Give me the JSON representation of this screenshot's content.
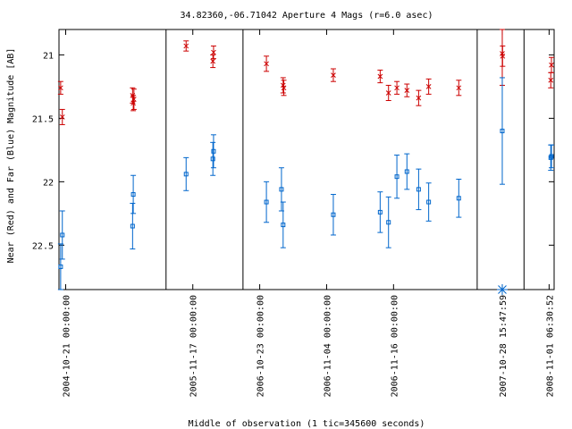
{
  "chart_data": {
    "type": "scatter",
    "title": "34.82360,-06.71042   Aperture 4 Mags (r=6.0 asec)",
    "xlabel": "Middle of observation (1 tic=345600 seconds)",
    "ylabel": "Near (Red) and Far (Blue) Magnitude [AB]",
    "y_axis": {
      "inverted": true,
      "ylim": [
        20.8,
        22.85
      ],
      "ticks": [
        "21",
        "21.5",
        "22",
        "22.5"
      ],
      "tick_values": [
        21,
        21.5,
        22,
        22.5
      ]
    },
    "x_axis": {
      "ticks": [
        "2004-10-21 00:00:00",
        "2005-11-17 00:00:00",
        "2006-10-23 00:00:00",
        "2006-11-04 00:00:00",
        "2006-11-16 00:00:00",
        "2007-10-28 15:47:59",
        "2008-11-01 06:30:52"
      ]
    },
    "grid": false,
    "legend": "none",
    "segments": [
      {
        "start": 0.0,
        "end": 3.2,
        "tick_at": 0.2,
        "tick_label": 0
      },
      {
        "start": 3.2,
        "end": 5.5,
        "tick_at": 0.8,
        "tick_label": 1
      },
      {
        "start": 5.5,
        "end": 12.5,
        "tick_at": 0.5,
        "tick_label": 2
      },
      {
        "start": 5.5,
        "end": 12.5,
        "tick_at": 2.5,
        "tick_label": 3
      },
      {
        "start": 5.5,
        "end": 12.5,
        "tick_at": 4.5,
        "tick_label": 4
      },
      {
        "start": 12.5,
        "end": 13.9,
        "tick_at": 0.75,
        "tick_label": 5
      },
      {
        "start": 13.9,
        "end": 14.8,
        "tick_at": 0.75,
        "tick_label": 6
      }
    ],
    "separators": [
      3.2,
      5.5,
      12.5,
      13.9
    ],
    "series": [
      {
        "name": "Near (Red)",
        "color": "#cc0000",
        "marker": "x",
        "points": [
          {
            "x": 0.05,
            "y": 21.26,
            "err": 0.05
          },
          {
            "x": 0.1,
            "y": 21.49,
            "err": 0.06
          },
          {
            "x": 2.2,
            "y": 21.32,
            "err": 0.06
          },
          {
            "x": 2.22,
            "y": 21.38,
            "err": 0.06
          },
          {
            "x": 2.24,
            "y": 21.35,
            "err": 0.08
          },
          {
            "x": 3.8,
            "y": 20.93,
            "err": 0.04
          },
          {
            "x": 4.6,
            "y": 21.05,
            "err": 0.05
          },
          {
            "x": 4.62,
            "y": 20.98,
            "err": 0.05
          },
          {
            "x": 6.2,
            "y": 21.07,
            "err": 0.06
          },
          {
            "x": 6.7,
            "y": 21.24,
            "err": 0.06
          },
          {
            "x": 6.72,
            "y": 21.26,
            "err": 0.06
          },
          {
            "x": 8.2,
            "y": 21.16,
            "err": 0.05
          },
          {
            "x": 9.6,
            "y": 21.17,
            "err": 0.05
          },
          {
            "x": 9.85,
            "y": 21.3,
            "err": 0.06
          },
          {
            "x": 10.1,
            "y": 21.26,
            "err": 0.05
          },
          {
            "x": 10.4,
            "y": 21.28,
            "err": 0.05
          },
          {
            "x": 10.75,
            "y": 21.34,
            "err": 0.06
          },
          {
            "x": 11.05,
            "y": 21.25,
            "err": 0.06
          },
          {
            "x": 11.95,
            "y": 21.26,
            "err": 0.06
          },
          {
            "x": 13.25,
            "y": 20.99,
            "err": 0.25
          },
          {
            "x": 13.26,
            "y": 21.01,
            "err": 0.08
          },
          {
            "x": 14.7,
            "y": 21.2,
            "err": 0.06
          },
          {
            "x": 14.72,
            "y": 21.08,
            "err": 0.06
          }
        ]
      },
      {
        "name": "Far (Blue)",
        "color": "#0066cc",
        "marker": "square",
        "points": [
          {
            "x": 0.05,
            "y": 22.67,
            "err": 0.18
          },
          {
            "x": 0.1,
            "y": 22.42,
            "err": 0.19
          },
          {
            "x": 2.2,
            "y": 22.35,
            "err": 0.18
          },
          {
            "x": 2.22,
            "y": 22.1,
            "err": 0.15
          },
          {
            "x": 3.8,
            "y": 21.94,
            "err": 0.13
          },
          {
            "x": 4.6,
            "y": 21.82,
            "err": 0.13
          },
          {
            "x": 4.62,
            "y": 21.76,
            "err": 0.13
          },
          {
            "x": 6.2,
            "y": 22.16,
            "err": 0.16
          },
          {
            "x": 6.65,
            "y": 22.06,
            "err": 0.17
          },
          {
            "x": 6.7,
            "y": 22.34,
            "err": 0.18
          },
          {
            "x": 8.2,
            "y": 22.26,
            "err": 0.16
          },
          {
            "x": 9.6,
            "y": 22.24,
            "err": 0.16
          },
          {
            "x": 9.85,
            "y": 22.32,
            "err": 0.2
          },
          {
            "x": 10.1,
            "y": 21.96,
            "err": 0.17
          },
          {
            "x": 10.4,
            "y": 21.92,
            "err": 0.14
          },
          {
            "x": 10.75,
            "y": 22.06,
            "err": 0.16
          },
          {
            "x": 11.05,
            "y": 22.16,
            "err": 0.15
          },
          {
            "x": 11.95,
            "y": 22.13,
            "err": 0.15
          },
          {
            "x": 13.25,
            "y": 21.6,
            "err": 0.42
          },
          {
            "x": 14.7,
            "y": 21.81,
            "err": 0.1
          },
          {
            "x": 14.72,
            "y": 21.8,
            "err": 0.09
          }
        ]
      }
    ],
    "annotations": [
      {
        "type": "asterisk",
        "x": 13.25,
        "y": 22.85,
        "color": "#0066cc"
      }
    ]
  }
}
